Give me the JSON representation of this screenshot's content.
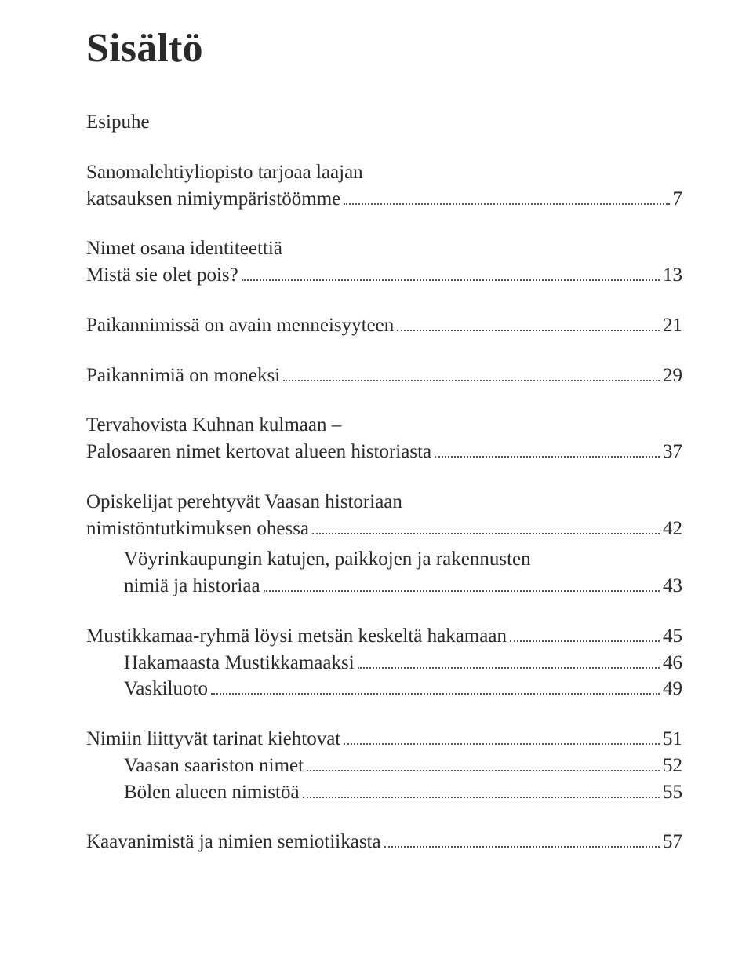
{
  "title": "Sisältö",
  "sections": [
    {
      "lines": [
        "Esipuhe"
      ],
      "sub": []
    },
    {
      "lines": [
        "Sanomalehtiyliopisto tarjoaa laajan"
      ],
      "lastLine": "katsauksen nimiympäristöömme",
      "page": "7",
      "sub": []
    },
    {
      "lines": [
        "Nimet osana identiteettiä"
      ],
      "lastLine": "Mistä sie olet pois?",
      "page": "13",
      "sub": []
    },
    {
      "lastLine": "Paikannimissä on avain menneisyyteen",
      "page": "21",
      "sub": []
    },
    {
      "lastLine": "Paikannimiä on moneksi",
      "page": "29",
      "sub": []
    },
    {
      "lines": [
        "Tervahovista Kuhnan kulmaan –"
      ],
      "lastLine": "Palosaaren nimet kertovat alueen historiasta",
      "page": "37",
      "sub": []
    },
    {
      "lines": [
        "Opiskelijat perehtyvät Vaasan historiaan"
      ],
      "lastLine": "nimistöntutkimuksen ohessa",
      "page": "42",
      "sub": [
        {
          "lines": [
            "Vöyrinkaupungin katujen, paikkojen ja rakennusten"
          ],
          "lastLine": "nimiä ja historiaa",
          "page": "43"
        }
      ]
    },
    {
      "lastLine": "Mustikkamaa-ryhmä löysi metsän keskeltä hakamaan",
      "page": "45",
      "sub": [
        {
          "lastLine": "Hakamaasta Mustikkamaaksi",
          "page": "46"
        },
        {
          "lastLine": "Vaskiluoto",
          "page": "49"
        }
      ]
    },
    {
      "lastLine": "Nimiin liittyvät tarinat kiehtovat",
      "page": "51",
      "sub": [
        {
          "lastLine": "Vaasan saariston nimet",
          "page": "52"
        },
        {
          "lastLine": "Bölen alueen nimistöä",
          "page": "55"
        }
      ]
    },
    {
      "lastLine": "Kaavanimistä ja nimien semiotiikasta",
      "page": "57",
      "sub": []
    }
  ]
}
